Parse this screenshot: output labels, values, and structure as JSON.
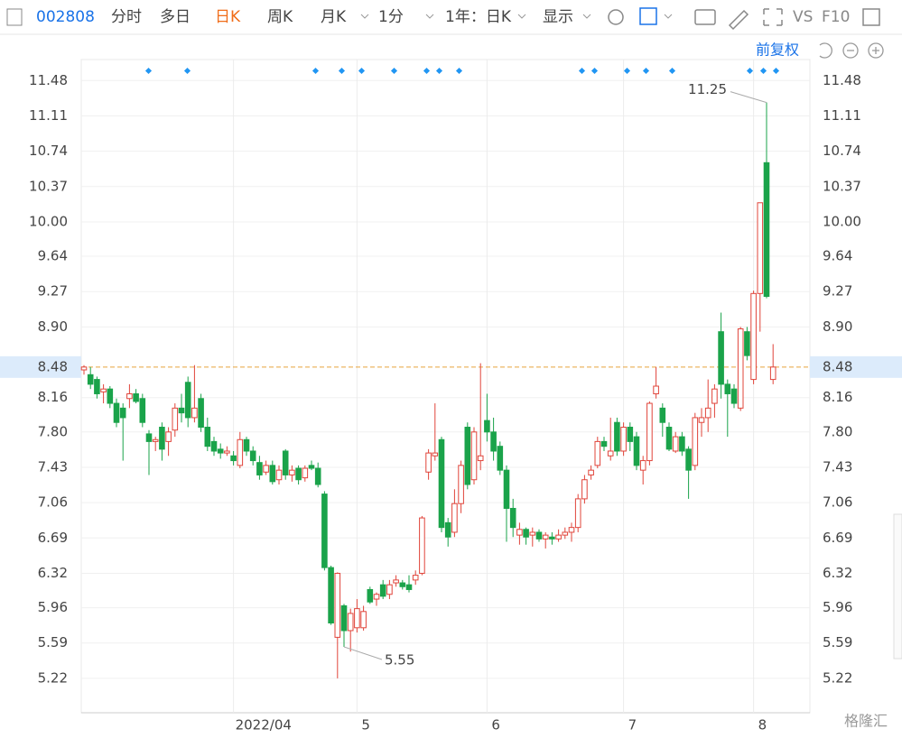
{
  "toolbar": {
    "code": "002808",
    "tabs": [
      "分时",
      "多日",
      "日K",
      "周K",
      "月K",
      "1分",
      "1年：日K",
      "显示"
    ],
    "active": "日K",
    "right": [
      "VS",
      "F10"
    ],
    "adjust": "前复权"
  },
  "watermark": "格隆汇",
  "chart_data": {
    "type": "candlestick",
    "up_color": "#e0443a",
    "down_color": "#1aa34a",
    "ylim": [
      4.86,
      11.7
    ],
    "yticks": [
      11.48,
      11.11,
      10.74,
      10.37,
      {
        "value": 10,
        "label": "10.00"
      },
      9.64,
      9.27,
      {
        "value": 8.9,
        "label": "8.90"
      },
      8.16,
      {
        "value": 7.8,
        "label": "7.80"
      },
      7.43,
      7.06,
      6.69,
      6.32,
      5.96,
      5.59,
      5.22
    ],
    "last_price": 8.48,
    "xticks": [
      {
        "value": 23,
        "label": "2022/04"
      },
      {
        "value": 42,
        "label": "5"
      },
      {
        "value": 62,
        "label": "6"
      },
      {
        "value": 83,
        "label": "7"
      },
      {
        "value": 103,
        "label": "8"
      }
    ],
    "max_label_index": 105,
    "min_label_index": 39,
    "candles": [
      {
        "open": 8.45,
        "high": 8.5,
        "low": 8.4,
        "close": 8.48
      },
      {
        "open": 8.4,
        "high": 8.48,
        "low": 8.25,
        "close": 8.3
      },
      {
        "open": 8.35,
        "high": 8.38,
        "low": 8.15,
        "close": 8.2
      },
      {
        "open": 8.22,
        "high": 8.3,
        "low": 8.1,
        "close": 8.25
      },
      {
        "open": 8.25,
        "high": 8.28,
        "low": 8.05,
        "close": 8.1
      },
      {
        "open": 8.1,
        "high": 8.15,
        "low": 7.85,
        "close": 7.9
      },
      {
        "open": 8.05,
        "high": 8.1,
        "low": 7.5,
        "close": 7.95
      },
      {
        "open": 8.15,
        "high": 8.3,
        "low": 8.05,
        "close": 8.2
      },
      {
        "open": 8.2,
        "high": 8.25,
        "low": 8.1,
        "close": 8.12
      },
      {
        "open": 8.15,
        "high": 8.2,
        "low": 7.85,
        "close": 7.9
      },
      {
        "open": 7.78,
        "high": 7.82,
        "low": 7.35,
        "close": 7.7
      },
      {
        "open": 7.7,
        "high": 7.75,
        "low": 7.6,
        "close": 7.72
      },
      {
        "open": 7.85,
        "high": 7.9,
        "low": 7.5,
        "close": 7.62
      },
      {
        "open": 7.7,
        "high": 7.85,
        "low": 7.55,
        "close": 7.8
      },
      {
        "open": 7.82,
        "high": 8.1,
        "low": 7.75,
        "close": 8.05
      },
      {
        "open": 8.05,
        "high": 8.2,
        "low": 7.9,
        "close": 8.0
      },
      {
        "open": 8.32,
        "high": 8.38,
        "low": 7.85,
        "close": 7.95
      },
      {
        "open": 7.95,
        "high": 8.5,
        "low": 7.9,
        "close": 8.05
      },
      {
        "open": 8.15,
        "high": 8.2,
        "low": 7.8,
        "close": 7.85
      },
      {
        "open": 7.85,
        "high": 7.95,
        "low": 7.6,
        "close": 7.65
      },
      {
        "open": 7.7,
        "high": 7.75,
        "low": 7.55,
        "close": 7.6
      },
      {
        "open": 7.62,
        "high": 7.68,
        "low": 7.52,
        "close": 7.58
      },
      {
        "open": 7.58,
        "high": 7.65,
        "low": 7.55,
        "close": 7.6
      },
      {
        "open": 7.55,
        "high": 7.6,
        "low": 7.45,
        "close": 7.5
      },
      {
        "open": 7.45,
        "high": 7.8,
        "low": 7.42,
        "close": 7.72
      },
      {
        "open": 7.72,
        "high": 7.75,
        "low": 7.55,
        "close": 7.6
      },
      {
        "open": 7.6,
        "high": 7.65,
        "low": 7.45,
        "close": 7.5
      },
      {
        "open": 7.48,
        "high": 7.55,
        "low": 7.3,
        "close": 7.35
      },
      {
        "open": 7.38,
        "high": 7.5,
        "low": 7.35,
        "close": 7.45
      },
      {
        "open": 7.45,
        "high": 7.5,
        "low": 7.25,
        "close": 7.28
      },
      {
        "open": 7.3,
        "high": 7.45,
        "low": 7.25,
        "close": 7.4
      },
      {
        "open": 7.6,
        "high": 7.62,
        "low": 7.3,
        "close": 7.35
      },
      {
        "open": 7.35,
        "high": 7.45,
        "low": 7.28,
        "close": 7.4
      },
      {
        "open": 7.42,
        "high": 7.45,
        "low": 7.25,
        "close": 7.3
      },
      {
        "open": 7.32,
        "high": 7.45,
        "low": 7.28,
        "close": 7.42
      },
      {
        "open": 7.45,
        "high": 7.5,
        "low": 7.4,
        "close": 7.42
      },
      {
        "open": 7.42,
        "high": 7.48,
        "low": 7.22,
        "close": 7.25
      },
      {
        "open": 7.15,
        "high": 7.18,
        "low": 6.35,
        "close": 6.38
      },
      {
        "open": 6.38,
        "high": 6.4,
        "low": 5.78,
        "close": 5.8
      },
      {
        "open": 5.65,
        "high": 6.33,
        "low": 5.22,
        "close": 6.32
      },
      {
        "open": 5.98,
        "high": 6.0,
        "low": 5.55,
        "close": 5.72
      },
      {
        "open": 5.72,
        "high": 5.95,
        "low": 5.5,
        "close": 5.9
      },
      {
        "open": 5.75,
        "high": 6.05,
        "low": 5.7,
        "close": 5.95
      },
      {
        "open": 5.75,
        "high": 5.98,
        "low": 5.72,
        "close": 5.92
      },
      {
        "open": 6.15,
        "high": 6.18,
        "low": 6.0,
        "close": 6.02
      },
      {
        "open": 6.05,
        "high": 6.12,
        "low": 5.98,
        "close": 6.1
      },
      {
        "open": 6.2,
        "high": 6.25,
        "low": 6.05,
        "close": 6.08
      },
      {
        "open": 6.1,
        "high": 6.25,
        "low": 6.05,
        "close": 6.2
      },
      {
        "open": 6.22,
        "high": 6.3,
        "low": 6.18,
        "close": 6.25
      },
      {
        "open": 6.22,
        "high": 6.25,
        "low": 6.15,
        "close": 6.18
      },
      {
        "open": 6.2,
        "high": 6.3,
        "low": 6.12,
        "close": 6.15
      },
      {
        "open": 6.25,
        "high": 6.35,
        "low": 6.2,
        "close": 6.3
      },
      {
        "open": 6.32,
        "high": 6.92,
        "low": 6.3,
        "close": 6.9
      },
      {
        "open": 7.38,
        "high": 7.62,
        "low": 7.3,
        "close": 7.58
      },
      {
        "open": 7.55,
        "high": 8.1,
        "low": 7.5,
        "close": 7.58
      },
      {
        "open": 7.72,
        "high": 7.75,
        "low": 6.75,
        "close": 6.8
      },
      {
        "open": 6.85,
        "high": 6.9,
        "low": 6.6,
        "close": 6.7
      },
      {
        "open": 6.75,
        "high": 7.2,
        "low": 6.7,
        "close": 7.05
      },
      {
        "open": 7.05,
        "high": 7.5,
        "low": 6.95,
        "close": 7.45
      },
      {
        "open": 7.85,
        "high": 7.9,
        "low": 7.2,
        "close": 7.25
      },
      {
        "open": 7.3,
        "high": 7.85,
        "low": 7.25,
        "close": 7.8
      },
      {
        "open": 7.5,
        "high": 8.52,
        "low": 7.4,
        "close": 7.55
      },
      {
        "open": 7.92,
        "high": 8.2,
        "low": 7.7,
        "close": 7.8
      },
      {
        "open": 7.8,
        "high": 7.95,
        "low": 7.5,
        "close": 7.6
      },
      {
        "open": 7.65,
        "high": 7.7,
        "low": 7.35,
        "close": 7.4
      },
      {
        "open": 7.4,
        "high": 7.45,
        "low": 6.65,
        "close": 7.0
      },
      {
        "open": 7.0,
        "high": 7.1,
        "low": 6.7,
        "close": 6.8
      },
      {
        "open": 6.72,
        "high": 6.85,
        "low": 6.62,
        "close": 6.78
      },
      {
        "open": 6.78,
        "high": 6.8,
        "low": 6.62,
        "close": 6.7
      },
      {
        "open": 6.72,
        "high": 6.8,
        "low": 6.6,
        "close": 6.75
      },
      {
        "open": 6.75,
        "high": 6.78,
        "low": 6.65,
        "close": 6.68
      },
      {
        "open": 6.68,
        "high": 6.75,
        "low": 6.58,
        "close": 6.72
      },
      {
        "open": 6.7,
        "high": 6.75,
        "low": 6.62,
        "close": 6.68
      },
      {
        "open": 6.68,
        "high": 6.78,
        "low": 6.65,
        "close": 6.72
      },
      {
        "open": 6.72,
        "high": 6.8,
        "low": 6.68,
        "close": 6.75
      },
      {
        "open": 6.75,
        "high": 6.85,
        "low": 6.65,
        "close": 6.8
      },
      {
        "open": 6.8,
        "high": 7.15,
        "low": 6.75,
        "close": 7.1
      },
      {
        "open": 7.1,
        "high": 7.35,
        "low": 7.05,
        "close": 7.3
      },
      {
        "open": 7.35,
        "high": 7.45,
        "low": 7.3,
        "close": 7.4
      },
      {
        "open": 7.45,
        "high": 7.75,
        "low": 7.42,
        "close": 7.7
      },
      {
        "open": 7.7,
        "high": 7.75,
        "low": 7.6,
        "close": 7.65
      },
      {
        "open": 7.55,
        "high": 7.95,
        "low": 7.5,
        "close": 7.6
      },
      {
        "open": 7.9,
        "high": 7.95,
        "low": 7.55,
        "close": 7.6
      },
      {
        "open": 7.6,
        "high": 7.9,
        "low": 7.55,
        "close": 7.85
      },
      {
        "open": 7.85,
        "high": 7.9,
        "low": 7.6,
        "close": 7.7
      },
      {
        "open": 7.75,
        "high": 7.8,
        "low": 7.4,
        "close": 7.45
      },
      {
        "open": 7.4,
        "high": 7.55,
        "low": 7.25,
        "close": 7.5
      },
      {
        "open": 7.5,
        "high": 8.12,
        "low": 7.45,
        "close": 8.1
      },
      {
        "open": 8.2,
        "high": 8.48,
        "low": 8.15,
        "close": 8.28
      },
      {
        "open": 8.05,
        "high": 8.1,
        "low": 7.75,
        "close": 7.9
      },
      {
        "open": 7.85,
        "high": 7.9,
        "low": 7.6,
        "close": 7.62
      },
      {
        "open": 7.6,
        "high": 7.8,
        "low": 7.58,
        "close": 7.75
      },
      {
        "open": 7.75,
        "high": 7.8,
        "low": 7.55,
        "close": 7.6
      },
      {
        "open": 7.62,
        "high": 7.65,
        "low": 7.1,
        "close": 7.4
      },
      {
        "open": 7.45,
        "high": 8.0,
        "low": 7.4,
        "close": 7.95
      },
      {
        "open": 7.9,
        "high": 8.05,
        "low": 7.75,
        "close": 7.95
      },
      {
        "open": 7.95,
        "high": 8.35,
        "low": 7.8,
        "close": 8.05
      },
      {
        "open": 8.1,
        "high": 8.3,
        "low": 7.95,
        "close": 8.25
      },
      {
        "open": 8.85,
        "high": 9.05,
        "low": 8.15,
        "close": 8.3
      },
      {
        "open": 8.3,
        "high": 8.35,
        "low": 7.75,
        "close": 8.2
      },
      {
        "open": 8.25,
        "high": 8.3,
        "low": 8.05,
        "close": 8.1
      },
      {
        "open": 8.05,
        "high": 8.9,
        "low": 8.02,
        "close": 8.88
      },
      {
        "open": 8.85,
        "high": 8.9,
        "low": 8.55,
        "close": 8.6
      },
      {
        "open": 8.35,
        "high": 9.28,
        "low": 8.3,
        "close": 9.25
      },
      {
        "open": 9.25,
        "high": 10.2,
        "low": 8.85,
        "close": 10.2
      },
      {
        "open": 10.62,
        "high": 11.25,
        "low": 9.2,
        "close": 9.22
      },
      {
        "open": 8.35,
        "high": 8.72,
        "low": 8.3,
        "close": 8.48
      }
    ]
  }
}
